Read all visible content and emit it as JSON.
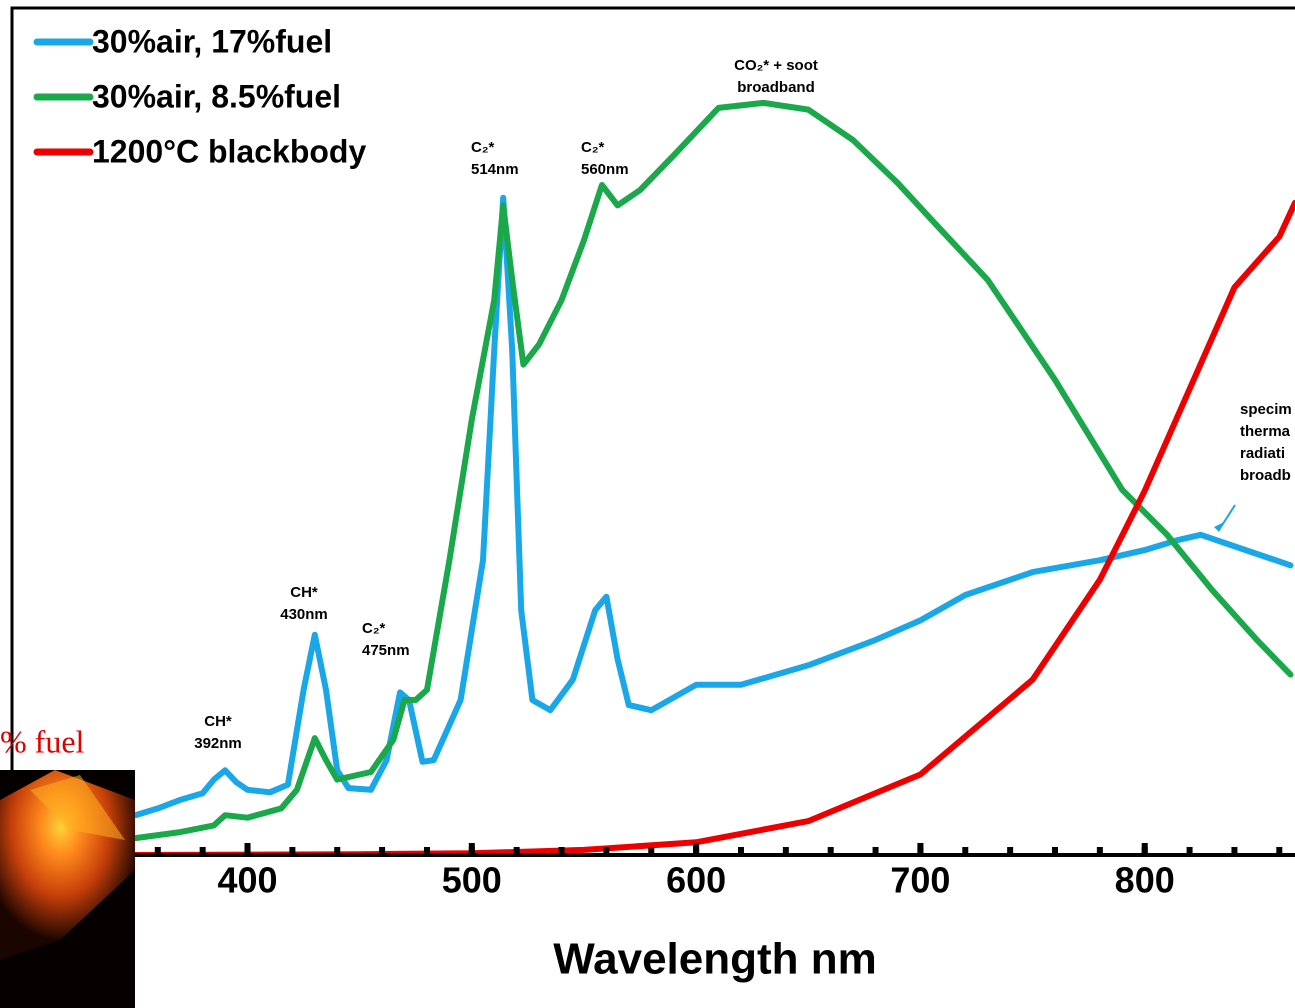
{
  "chart_data": {
    "type": "line",
    "x_label": "Wavelength nm",
    "xlim": [
      295,
      867
    ],
    "xticks": [
      400,
      500,
      600,
      700,
      800
    ],
    "ylim": [
      0,
      100
    ],
    "legend": "upper left",
    "series": [
      {
        "name": "30%air, 17%fuel",
        "color": "#1aa7e8",
        "x": [
          350,
          360,
          370,
          380,
          385,
          390,
          395,
          400,
          410,
          418,
          425,
          430,
          435,
          440,
          445,
          455,
          462,
          468,
          472,
          478,
          483,
          495,
          505,
          510,
          514,
          518,
          522,
          527,
          535,
          545,
          555,
          560,
          565,
          570,
          580,
          600,
          620,
          650,
          680,
          700,
          720,
          750,
          780,
          800,
          815,
          825,
          845,
          865
        ],
        "values": [
          4.7,
          5.5,
          6.5,
          7.3,
          8.9,
          10.0,
          8.6,
          7.7,
          7.4,
          8.3,
          19.5,
          26.0,
          19.5,
          10.0,
          7.9,
          7.7,
          11.2,
          19.2,
          18.3,
          11.0,
          11.2,
          18.3,
          34.8,
          59.6,
          77.6,
          59.6,
          28.9,
          18.3,
          17.1,
          20.7,
          28.9,
          30.5,
          23.1,
          17.7,
          17.1,
          20.1,
          20.1,
          22.4,
          25.4,
          27.7,
          30.7,
          33.4,
          34.8,
          36.0,
          37.2,
          37.8,
          36.0,
          34.2
        ]
      },
      {
        "name": "30%air, 8.5%fuel",
        "color": "#1aa84a",
        "x": [
          350,
          370,
          385,
          390,
          400,
          415,
          422,
          430,
          435,
          440,
          455,
          465,
          470,
          475,
          480,
          490,
          500,
          510,
          514,
          518,
          523,
          530,
          540,
          550,
          558,
          565,
          575,
          590,
          610,
          630,
          650,
          670,
          690,
          705,
          730,
          760,
          790,
          810,
          830,
          850,
          865
        ],
        "values": [
          2.0,
          2.7,
          3.5,
          4.7,
          4.4,
          5.5,
          7.7,
          13.8,
          11.2,
          8.9,
          9.8,
          13.6,
          18.3,
          18.3,
          19.5,
          34.8,
          51.4,
          65.5,
          76.7,
          67.9,
          57.9,
          60.3,
          65.5,
          72.6,
          79.1,
          76.7,
          78.5,
          82.6,
          88.2,
          88.8,
          88.0,
          84.4,
          79.3,
          75.0,
          67.9,
          56.1,
          43.1,
          37.8,
          31.3,
          25.4,
          21.3
        ]
      },
      {
        "name": "1200°C blackbody",
        "color": "#ee0000",
        "x": [
          350,
          450,
          500,
          550,
          600,
          650,
          700,
          750,
          780,
          800,
          820,
          840,
          860,
          867
        ],
        "values": [
          0,
          0.1,
          0.2,
          0.6,
          1.5,
          4.0,
          9.5,
          20.7,
          32.5,
          43,
          55,
          67,
          73,
          77
        ]
      }
    ],
    "annotations": [
      {
        "lines": [
          "CH*",
          "392nm"
        ]
      },
      {
        "lines": [
          "CH*",
          "430nm"
        ]
      },
      {
        "lines": [
          "C₂*",
          "475nm"
        ]
      },
      {
        "lines": [
          "C₂*",
          "514nm"
        ]
      },
      {
        "lines": [
          "C₂*",
          "560nm"
        ]
      },
      {
        "lines": [
          "CO₂* + soot",
          "broadband"
        ]
      },
      {
        "lines": [
          "specim",
          "therma",
          "radiati",
          "broadb"
        ]
      }
    ],
    "inset_caption": "% fuel"
  }
}
